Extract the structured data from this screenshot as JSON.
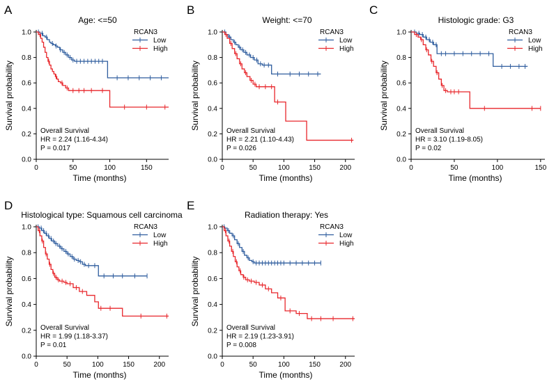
{
  "colors": {
    "low": "#2f5d9e",
    "high": "#e8262b",
    "axis": "#000000"
  },
  "chart_data": [
    {
      "panel_letter": "A",
      "type": "line",
      "subtype": "kaplan-meier",
      "title": "Age: <=50",
      "xlabel": "Time (months)",
      "ylabel": "Survival probability",
      "xlim": [
        0,
        180
      ],
      "ylim": [
        0,
        1
      ],
      "xticks": [
        0,
        50,
        100,
        150
      ],
      "yticks": [
        0.0,
        0.2,
        0.4,
        0.6,
        0.8,
        1.0
      ],
      "legend_title": "RCAN3",
      "legend_position": "top-right",
      "annotation": [
        "Overall Survival",
        "HR = 2.24 (1.16-4.34)",
        "P = 0.017"
      ],
      "series": [
        {
          "name": "Low",
          "x": [
            0,
            5,
            9,
            12,
            15,
            18,
            20,
            23,
            26,
            29,
            32,
            36,
            40,
            44,
            48,
            52,
            97,
            180
          ],
          "y": [
            1.0,
            0.99,
            0.97,
            0.96,
            0.94,
            0.92,
            0.91,
            0.9,
            0.89,
            0.88,
            0.86,
            0.84,
            0.82,
            0.8,
            0.78,
            0.77,
            0.64,
            0.64
          ],
          "censor_x": [
            3,
            8,
            14,
            22,
            27,
            33,
            38,
            42,
            46,
            50,
            55,
            60,
            65,
            70,
            75,
            80,
            85,
            90,
            110,
            125,
            140,
            155,
            170
          ]
        },
        {
          "name": "High",
          "x": [
            0,
            3,
            6,
            8,
            10,
            12,
            14,
            16,
            18,
            20,
            22,
            24,
            26,
            28,
            30,
            33,
            36,
            40,
            44,
            100,
            180
          ],
          "y": [
            1.0,
            0.98,
            0.95,
            0.92,
            0.88,
            0.84,
            0.8,
            0.77,
            0.74,
            0.71,
            0.69,
            0.67,
            0.65,
            0.63,
            0.61,
            0.6,
            0.58,
            0.56,
            0.54,
            0.41,
            0.41
          ],
          "censor_x": [
            5,
            17,
            27,
            35,
            42,
            50,
            58,
            65,
            75,
            90,
            120,
            150,
            175
          ]
        }
      ]
    },
    {
      "panel_letter": "B",
      "type": "line",
      "subtype": "kaplan-meier",
      "title": "Weight: <=70",
      "xlabel": "Time (months)",
      "ylabel": "Survival probability",
      "xlim": [
        0,
        215
      ],
      "ylim": [
        0,
        1
      ],
      "xticks": [
        0,
        50,
        100,
        150,
        200
      ],
      "yticks": [
        0.0,
        0.2,
        0.4,
        0.6,
        0.8,
        1.0
      ],
      "legend_title": "RCAN3",
      "legend_position": "top-right",
      "annotation": [
        "Overall Survival",
        "HR = 2.21 (1.10-4.43)",
        "P = 0.026"
      ],
      "series": [
        {
          "name": "Low",
          "x": [
            0,
            6,
            10,
            14,
            18,
            22,
            26,
            30,
            35,
            40,
            46,
            52,
            58,
            65,
            80,
            160
          ],
          "y": [
            1.0,
            0.98,
            0.96,
            0.94,
            0.92,
            0.9,
            0.88,
            0.86,
            0.84,
            0.82,
            0.8,
            0.78,
            0.75,
            0.74,
            0.67,
            0.67
          ],
          "censor_x": [
            4,
            12,
            20,
            28,
            33,
            38,
            44,
            50,
            56,
            62,
            68,
            75,
            90,
            110,
            125,
            140,
            155
          ]
        },
        {
          "name": "High",
          "x": [
            0,
            4,
            8,
            12,
            16,
            20,
            24,
            28,
            32,
            36,
            40,
            45,
            50,
            55,
            85,
            103,
            137,
            213
          ],
          "y": [
            1.0,
            0.98,
            0.95,
            0.91,
            0.87,
            0.83,
            0.79,
            0.75,
            0.71,
            0.68,
            0.65,
            0.62,
            0.59,
            0.57,
            0.45,
            0.3,
            0.15,
            0.15
          ],
          "censor_x": [
            6,
            14,
            22,
            30,
            38,
            47,
            53,
            60,
            70,
            80,
            90,
            210
          ]
        }
      ]
    },
    {
      "panel_letter": "C",
      "type": "line",
      "subtype": "kaplan-meier",
      "title": "Histologic grade: G3",
      "xlabel": "Time (months)",
      "ylabel": "Survival probability",
      "xlim": [
        0,
        155
      ],
      "ylim": [
        0,
        1
      ],
      "xticks": [
        0,
        50,
        100,
        150
      ],
      "yticks": [
        0.0,
        0.2,
        0.4,
        0.6,
        0.8,
        1.0
      ],
      "legend_title": "RCAN3",
      "legend_position": "top-right",
      "annotation": [
        "Overall Survival",
        "HR = 3.10 (1.19-8.05)",
        "P = 0.02"
      ],
      "series": [
        {
          "name": "Low",
          "x": [
            0,
            6,
            10,
            14,
            18,
            22,
            26,
            30,
            95,
            135
          ],
          "y": [
            1.0,
            0.99,
            0.98,
            0.96,
            0.94,
            0.92,
            0.9,
            0.83,
            0.73,
            0.73
          ],
          "censor_x": [
            4,
            9,
            13,
            17,
            21,
            25,
            29,
            35,
            40,
            50,
            60,
            70,
            80,
            90,
            105,
            115,
            125,
            132
          ]
        },
        {
          "name": "High",
          "x": [
            0,
            4,
            8,
            11,
            14,
            17,
            20,
            23,
            26,
            29,
            32,
            35,
            38,
            42,
            68,
            150
          ],
          "y": [
            1.0,
            0.98,
            0.96,
            0.94,
            0.9,
            0.86,
            0.82,
            0.77,
            0.73,
            0.68,
            0.63,
            0.58,
            0.54,
            0.53,
            0.4,
            0.4
          ],
          "censor_x": [
            6,
            12,
            18,
            24,
            30,
            36,
            40,
            46,
            50,
            55,
            85,
            140,
            150
          ]
        }
      ]
    },
    {
      "panel_letter": "D",
      "type": "line",
      "subtype": "kaplan-meier",
      "title": "Histological type: Squamous cell carcinoma",
      "xlabel": "Time (months)",
      "ylabel": "Survival probability",
      "xlim": [
        0,
        215
      ],
      "ylim": [
        0,
        1
      ],
      "xticks": [
        0,
        50,
        100,
        150,
        200
      ],
      "yticks": [
        0.0,
        0.2,
        0.4,
        0.6,
        0.8,
        1.0
      ],
      "legend_title": "RCAN3",
      "legend_position": "top-right",
      "annotation": [
        "Overall Survival",
        "HR = 1.99 (1.18-3.37)",
        "P = 0.01"
      ],
      "series": [
        {
          "name": "Low",
          "x": [
            0,
            5,
            9,
            13,
            17,
            21,
            25,
            30,
            35,
            40,
            45,
            50,
            55,
            60,
            65,
            70,
            75,
            80,
            101,
            180
          ],
          "y": [
            1.0,
            0.99,
            0.97,
            0.95,
            0.93,
            0.91,
            0.89,
            0.87,
            0.85,
            0.83,
            0.81,
            0.79,
            0.77,
            0.75,
            0.74,
            0.73,
            0.71,
            0.7,
            0.62,
            0.62
          ],
          "censor_x": [
            3,
            8,
            12,
            16,
            20,
            24,
            28,
            32,
            38,
            42,
            48,
            52,
            58,
            62,
            68,
            72,
            78,
            85,
            95,
            110,
            125,
            140,
            160,
            180
          ]
        },
        {
          "name": "High",
          "x": [
            0,
            3,
            6,
            9,
            12,
            15,
            18,
            21,
            24,
            27,
            30,
            34,
            38,
            45,
            50,
            60,
            70,
            82,
            95,
            101,
            140,
            215
          ],
          "y": [
            1.0,
            0.97,
            0.93,
            0.89,
            0.84,
            0.79,
            0.75,
            0.71,
            0.67,
            0.64,
            0.61,
            0.59,
            0.58,
            0.57,
            0.56,
            0.53,
            0.5,
            0.47,
            0.42,
            0.37,
            0.31,
            0.31
          ],
          "censor_x": [
            5,
            10,
            16,
            22,
            28,
            32,
            36,
            42,
            48,
            55,
            65,
            75,
            105,
            120,
            170,
            212
          ]
        }
      ]
    },
    {
      "panel_letter": "E",
      "type": "line",
      "subtype": "kaplan-meier",
      "title": "Radiation therapy: Yes",
      "xlabel": "Time (months)",
      "ylabel": "Survival probability",
      "xlim": [
        0,
        215
      ],
      "ylim": [
        0,
        1
      ],
      "xticks": [
        0,
        50,
        100,
        150,
        200
      ],
      "yticks": [
        0.0,
        0.2,
        0.4,
        0.6,
        0.8,
        1.0
      ],
      "legend_title": "RCAN3",
      "legend_position": "top-right",
      "annotation": [
        "Overall Survival",
        "HR = 2.19 (1.23-3.91)",
        "P = 0.008"
      ],
      "series": [
        {
          "name": "Low",
          "x": [
            0,
            4,
            8,
            12,
            16,
            20,
            24,
            28,
            32,
            36,
            40,
            44,
            48,
            52,
            160
          ],
          "y": [
            1.0,
            0.99,
            0.97,
            0.95,
            0.93,
            0.9,
            0.87,
            0.84,
            0.81,
            0.78,
            0.76,
            0.74,
            0.73,
            0.72,
            0.72
          ],
          "censor_x": [
            3,
            10,
            18,
            26,
            34,
            42,
            50,
            55,
            60,
            65,
            70,
            75,
            80,
            85,
            90,
            95,
            100,
            110,
            120,
            130,
            140,
            150,
            160
          ]
        },
        {
          "name": "High",
          "x": [
            0,
            3,
            6,
            9,
            12,
            15,
            18,
            21,
            24,
            27,
            30,
            34,
            38,
            44,
            52,
            60,
            70,
            80,
            90,
            102,
            120,
            138,
            215
          ],
          "y": [
            1.0,
            0.97,
            0.93,
            0.89,
            0.85,
            0.81,
            0.77,
            0.73,
            0.69,
            0.66,
            0.63,
            0.61,
            0.59,
            0.58,
            0.57,
            0.55,
            0.52,
            0.49,
            0.45,
            0.35,
            0.33,
            0.29,
            0.29
          ],
          "censor_x": [
            5,
            11,
            17,
            23,
            29,
            35,
            41,
            47,
            55,
            65,
            75,
            95,
            110,
            125,
            145,
            160,
            180,
            212
          ]
        }
      ]
    }
  ]
}
